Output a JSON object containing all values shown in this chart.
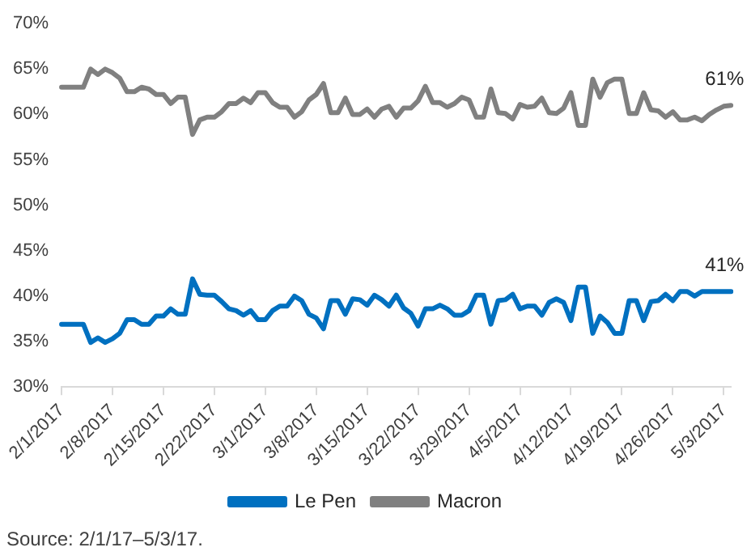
{
  "chart_data": {
    "type": "line",
    "categories": [
      "2/1/2017",
      null,
      null,
      null,
      null,
      null,
      null,
      "2/8/2017",
      null,
      null,
      null,
      null,
      null,
      null,
      "2/15/2017",
      null,
      null,
      null,
      null,
      null,
      null,
      "2/22/2017",
      null,
      null,
      null,
      null,
      null,
      null,
      "3/1/2017",
      null,
      null,
      null,
      null,
      null,
      null,
      "3/8/2017",
      null,
      null,
      null,
      null,
      null,
      null,
      "3/15/2017",
      null,
      null,
      null,
      null,
      null,
      null,
      "3/22/2017",
      null,
      null,
      null,
      null,
      null,
      null,
      "3/29/2017",
      null,
      null,
      null,
      null,
      null,
      null,
      "4/5/2017",
      null,
      null,
      null,
      null,
      null,
      null,
      "4/12/2017",
      null,
      null,
      null,
      null,
      null,
      null,
      "4/19/2017",
      null,
      null,
      null,
      null,
      null,
      null,
      "4/26/2017",
      null,
      null,
      null,
      null,
      null,
      null,
      "5/3/2017",
      null
    ],
    "series": [
      {
        "name": "Le Pen",
        "color": "#0070c0",
        "values": [
          36.9,
          36.9,
          36.9,
          36.9,
          34.9,
          35.4,
          34.9,
          35.3,
          35.9,
          37.4,
          37.4,
          36.9,
          36.9,
          37.8,
          37.8,
          38.6,
          38,
          38,
          41.9,
          40.2,
          40.1,
          40.1,
          39.4,
          38.6,
          38.4,
          37.9,
          38.4,
          37.4,
          37.4,
          38.4,
          38.9,
          38.9,
          40,
          39.5,
          38,
          37.6,
          36.4,
          39.5,
          39.5,
          38,
          39.7,
          39.6,
          39,
          40.1,
          39.6,
          38.9,
          40.1,
          38.7,
          38.1,
          36.7,
          38.6,
          38.6,
          39,
          38.6,
          37.9,
          37.9,
          38.4,
          40.1,
          40.1,
          36.9,
          39.5,
          39.6,
          40.2,
          38.6,
          38.9,
          38.9,
          37.9,
          39.3,
          39.7,
          39.3,
          37.3,
          41,
          41,
          35.9,
          37.8,
          37.1,
          35.9,
          35.9,
          39.5,
          39.5,
          37.3,
          39.4,
          39.5,
          40.2,
          39.5,
          40.5,
          40.5,
          40,
          40.5,
          40.5,
          40.5,
          40.5,
          40.5
        ],
        "value_labels": [
          null,
          null,
          null,
          null,
          null,
          null,
          null,
          null,
          null,
          null,
          null,
          null,
          null,
          null,
          null,
          null,
          null,
          null,
          null,
          null,
          null,
          null,
          null,
          null,
          null,
          null,
          null,
          null,
          null,
          null,
          null,
          null,
          null,
          null,
          null,
          null,
          null,
          null,
          null,
          null,
          null,
          null,
          null,
          null,
          null,
          null,
          null,
          null,
          null,
          null,
          null,
          null,
          null,
          null,
          null,
          null,
          null,
          null,
          null,
          null,
          null,
          null,
          null,
          null,
          null,
          null,
          null,
          null,
          null,
          null,
          null,
          null,
          null,
          null,
          null,
          null,
          null,
          null,
          null,
          null,
          null,
          null,
          null,
          null,
          null,
          null,
          null,
          null,
          null,
          null,
          null,
          null,
          "41%"
        ]
      },
      {
        "name": "Macron",
        "color": "#808080",
        "values": [
          63,
          63,
          63,
          63,
          65,
          64.4,
          65,
          64.6,
          64,
          62.5,
          62.5,
          63,
          62.8,
          62.2,
          62.2,
          61.2,
          61.9,
          61.9,
          57.8,
          59.4,
          59.7,
          59.7,
          60.3,
          61.2,
          61.2,
          61.8,
          61.3,
          62.4,
          62.4,
          61.3,
          60.8,
          60.8,
          59.7,
          60.3,
          61.6,
          62.2,
          63.4,
          60.2,
          60.2,
          61.8,
          60,
          60,
          60.6,
          59.7,
          60.6,
          60.9,
          59.7,
          60.7,
          60.7,
          61.5,
          63.1,
          61.3,
          61.3,
          60.8,
          61.2,
          61.9,
          61.6,
          59.7,
          59.7,
          62.8,
          60.2,
          60.1,
          59.5,
          61.1,
          60.8,
          60.9,
          61.8,
          60.2,
          60.1,
          60.7,
          62.4,
          58.8,
          58.8,
          63.9,
          61.9,
          63.5,
          63.9,
          63.9,
          60.1,
          60.1,
          62.4,
          60.5,
          60.4,
          59.7,
          60.3,
          59.4,
          59.4,
          59.7,
          59.3,
          60,
          60.5,
          60.9,
          61
        ],
        "value_labels": [
          null,
          null,
          null,
          null,
          null,
          null,
          null,
          null,
          null,
          null,
          null,
          null,
          null,
          null,
          null,
          null,
          null,
          null,
          null,
          null,
          null,
          null,
          null,
          null,
          null,
          null,
          null,
          null,
          null,
          null,
          null,
          null,
          null,
          null,
          null,
          null,
          null,
          null,
          null,
          null,
          null,
          null,
          null,
          null,
          null,
          null,
          null,
          null,
          null,
          null,
          null,
          null,
          null,
          null,
          null,
          null,
          null,
          null,
          null,
          null,
          null,
          null,
          null,
          null,
          null,
          null,
          null,
          null,
          null,
          null,
          null,
          null,
          null,
          null,
          null,
          null,
          null,
          null,
          null,
          null,
          null,
          null,
          null,
          null,
          null,
          null,
          null,
          null,
          null,
          null,
          null,
          null,
          "61%"
        ]
      }
    ],
    "ylim": [
      30,
      70
    ],
    "yticks": [
      {
        "value": 30,
        "label": "30%"
      },
      {
        "value": 35,
        "label": "35%"
      },
      {
        "value": 40,
        "label": "40%"
      },
      {
        "value": 45,
        "label": "45%"
      },
      {
        "value": 50,
        "label": "50%"
      },
      {
        "value": 55,
        "label": "55%"
      },
      {
        "value": 60,
        "label": "60%"
      },
      {
        "value": 65,
        "label": "65%"
      },
      {
        "value": 70,
        "label": "70%"
      }
    ],
    "grid": false,
    "legend": "bottom",
    "marker": "none",
    "line_style": "solid",
    "annotations": [
      "Source: 2/1/17–5/3/17."
    ]
  }
}
